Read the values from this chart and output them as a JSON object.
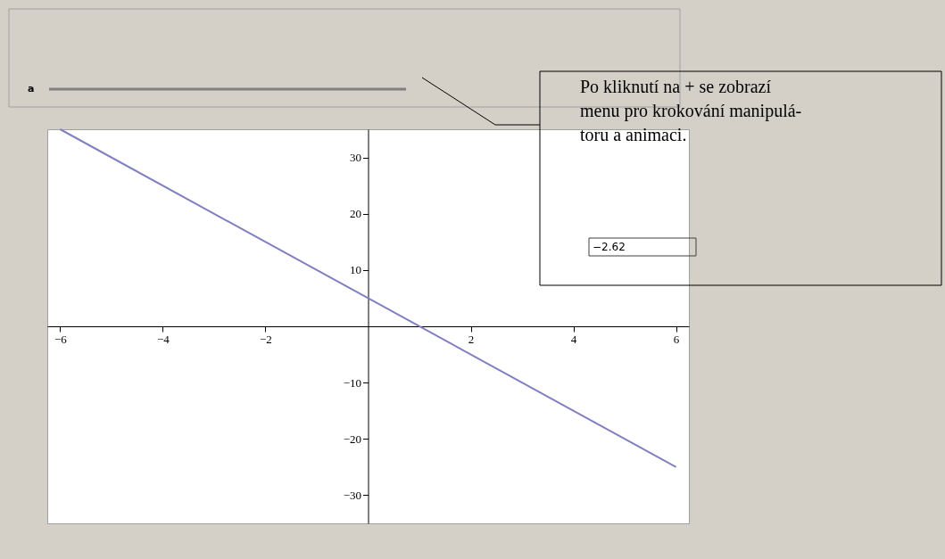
{
  "chart_data": {
    "type": "line",
    "x": [
      -6,
      6
    ],
    "series": [
      {
        "color": "#8080c0",
        "values": [
          35,
          -25
        ]
      }
    ],
    "xlim": [
      -6.25,
      6.25
    ],
    "ylim": [
      -35,
      35
    ],
    "xticks": [
      -6,
      -4,
      -2,
      2,
      4,
      6
    ],
    "yticks": [
      -30,
      -20,
      -10,
      10,
      20,
      30
    ],
    "grid": false,
    "annotations": [
      "a",
      "Po kliknutí na + se zobrazí\nmenu pro krokování manipulá-\ntoru a animaci.",
      "−2.62"
    ]
  }
}
